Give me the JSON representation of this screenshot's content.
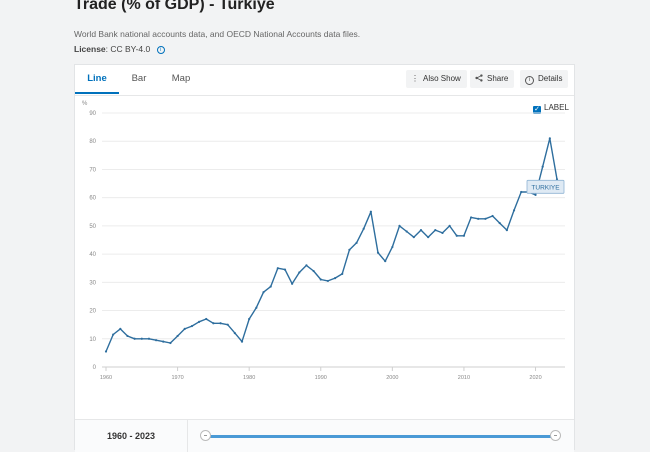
{
  "page": {
    "title": "Trade (% of GDP) - Turkiye",
    "subtitle": "World Bank national accounts data, and OECD National Accounts data files.",
    "license_label": "License",
    "license_value": ": CC BY-4.0",
    "info_icon": "info-icon"
  },
  "tabs": [
    {
      "label": "Line",
      "active": true
    },
    {
      "label": "Bar",
      "active": false
    },
    {
      "label": "Map",
      "active": false
    }
  ],
  "toolbar": {
    "also_show": "Also Show",
    "share": "Share",
    "details": "Details",
    "also_show_icon": "vertical-dots-icon",
    "share_icon": "share-icon",
    "details_icon": "info-icon"
  },
  "label_toggle": {
    "label": "LABEL",
    "checked": true
  },
  "range": {
    "start": "1960",
    "separator": " - ",
    "end": "2023"
  },
  "colors": {
    "accent": "#0071bc",
    "line": "#2e6e9e",
    "slider": "#4a9ad6"
  },
  "chart_data": {
    "type": "line",
    "ylabel": "%",
    "ylim": [
      0,
      90
    ],
    "yticks": [
      0,
      10,
      20,
      30,
      40,
      50,
      60,
      70,
      80,
      90
    ],
    "xlim": [
      1960,
      2023
    ],
    "xticks": [
      1960,
      1970,
      1980,
      1990,
      2000,
      2010,
      2020
    ],
    "grid": true,
    "series": [
      {
        "name": "TURKIYE",
        "x": [
          1960,
          1961,
          1962,
          1963,
          1964,
          1965,
          1966,
          1967,
          1968,
          1969,
          1970,
          1971,
          1972,
          1973,
          1974,
          1975,
          1976,
          1977,
          1978,
          1979,
          1980,
          1981,
          1982,
          1983,
          1984,
          1985,
          1986,
          1987,
          1988,
          1989,
          1990,
          1991,
          1992,
          1993,
          1994,
          1995,
          1996,
          1997,
          1998,
          1999,
          2000,
          2001,
          2002,
          2003,
          2004,
          2005,
          2006,
          2007,
          2008,
          2009,
          2010,
          2011,
          2012,
          2013,
          2014,
          2015,
          2016,
          2017,
          2018,
          2019,
          2020,
          2021,
          2022,
          2023
        ],
        "values": [
          5.5,
          11.5,
          13.5,
          11,
          10,
          10,
          10,
          9.5,
          9,
          8.5,
          11,
          13.5,
          14.5,
          16,
          17,
          15.5,
          15.5,
          15,
          12,
          9,
          17,
          21,
          26.5,
          28.5,
          35,
          34.5,
          29.5,
          33.5,
          36,
          34,
          31,
          30.5,
          31.5,
          33,
          41.5,
          44,
          49,
          55,
          40.5,
          37.5,
          42.5,
          50,
          48,
          46,
          48.5,
          46,
          48.5,
          47.5,
          50,
          46.5,
          46.5,
          53,
          52.5,
          52.5,
          53.5,
          51,
          48.5,
          55.5,
          62,
          62,
          61,
          71,
          81,
          66.5
        ]
      }
    ]
  }
}
